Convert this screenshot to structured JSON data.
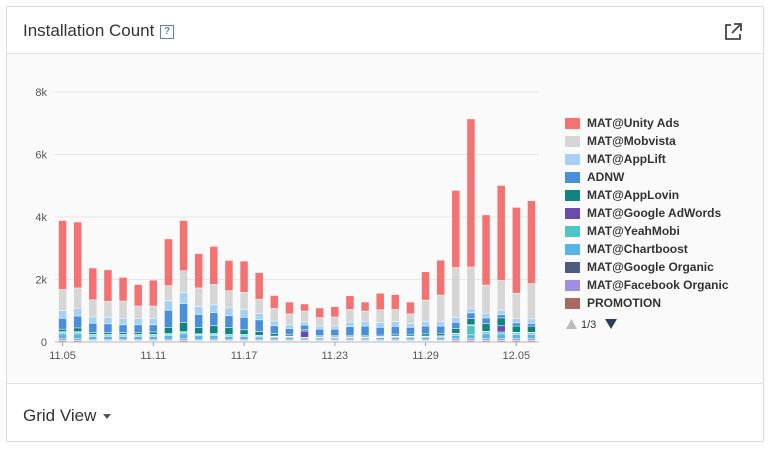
{
  "header": {
    "title": "Installation Count",
    "help_icon": "question-mark-icon",
    "export_icon": "external-link-icon"
  },
  "footer": {
    "view_label": "Grid View",
    "caret_icon": "caret-down-icon"
  },
  "legend": {
    "page_text": "1/3",
    "prev_icon": "triangle-up-icon",
    "next_icon": "triangle-down-icon"
  },
  "chart_data": {
    "type": "bar",
    "stacked": true,
    "y_ticks": [
      "0",
      "2k",
      "4k",
      "6k",
      "8k"
    ],
    "ylim": [
      0,
      8000
    ],
    "x_tick_labels": [
      "11.05",
      "11.11",
      "11.17",
      "11.23",
      "11.29",
      "12.05"
    ],
    "categories": [
      "11.05",
      "11.06",
      "11.07",
      "11.08",
      "11.09",
      "11.10",
      "11.11",
      "11.12",
      "11.13",
      "11.14",
      "11.15",
      "11.16",
      "11.17",
      "11.18",
      "11.19",
      "11.20",
      "11.21",
      "11.22",
      "11.23",
      "11.24",
      "11.25",
      "11.26",
      "11.27",
      "11.28",
      "11.29",
      "11.30",
      "12.01",
      "12.02",
      "12.03",
      "12.04",
      "12.05",
      "12.06"
    ],
    "grid": true,
    "legend_position": "right",
    "series": [
      {
        "name": "PROMOTION",
        "color": "#a86a60",
        "values": [
          30,
          30,
          20,
          20,
          20,
          20,
          20,
          20,
          30,
          20,
          20,
          20,
          20,
          20,
          20,
          20,
          20,
          20,
          20,
          20,
          20,
          20,
          20,
          20,
          20,
          20,
          30,
          30,
          30,
          30,
          30,
          30
        ]
      },
      {
        "name": "MAT@Facebook Organic",
        "color": "#a08ee0",
        "values": [
          30,
          30,
          20,
          20,
          20,
          20,
          20,
          30,
          30,
          20,
          30,
          20,
          20,
          20,
          20,
          20,
          20,
          20,
          20,
          20,
          20,
          20,
          20,
          20,
          20,
          20,
          30,
          30,
          30,
          30,
          30,
          30
        ]
      },
      {
        "name": "MAT@Google Organic",
        "color": "#4d5c80",
        "values": [
          40,
          40,
          30,
          30,
          30,
          30,
          30,
          30,
          40,
          30,
          30,
          30,
          30,
          30,
          30,
          30,
          30,
          30,
          30,
          30,
          30,
          30,
          30,
          30,
          30,
          30,
          40,
          40,
          40,
          40,
          40,
          40
        ]
      },
      {
        "name": "MAT@Chartboost",
        "color": "#56b4e9",
        "values": [
          150,
          150,
          100,
          100,
          100,
          100,
          100,
          120,
          150,
          120,
          120,
          100,
          100,
          80,
          60,
          60,
          50,
          50,
          50,
          50,
          50,
          60,
          60,
          60,
          60,
          70,
          100,
          120,
          150,
          150,
          130,
          130
        ]
      },
      {
        "name": "MAT@YeahMobi",
        "color": "#4cc5c5",
        "values": [
          50,
          50,
          40,
          40,
          40,
          40,
          40,
          40,
          50,
          40,
          40,
          40,
          40,
          30,
          30,
          30,
          20,
          20,
          20,
          20,
          20,
          20,
          30,
          30,
          30,
          30,
          50,
          300,
          60,
          60,
          50,
          50
        ]
      },
      {
        "name": "MAT@Google AdWords",
        "color": "#6a4cb0",
        "values": [
          20,
          20,
          20,
          20,
          20,
          20,
          20,
          20,
          20,
          20,
          20,
          20,
          20,
          20,
          20,
          20,
          200,
          20,
          20,
          20,
          20,
          20,
          20,
          20,
          20,
          20,
          20,
          20,
          20,
          200,
          20,
          20
        ]
      },
      {
        "name": "MAT@AppLovin",
        "color": "#10847e",
        "values": [
          80,
          120,
          60,
          60,
          60,
          70,
          80,
          200,
          300,
          200,
          250,
          220,
          150,
          120,
          80,
          60,
          40,
          40,
          40,
          40,
          40,
          40,
          60,
          60,
          70,
          80,
          150,
          200,
          250,
          250,
          200,
          200
        ]
      },
      {
        "name": "ADNW",
        "color": "#4a8fdc",
        "values": [
          350,
          380,
          300,
          280,
          250,
          240,
          230,
          550,
          600,
          420,
          420,
          380,
          400,
          380,
          250,
          180,
          150,
          200,
          200,
          280,
          300,
          250,
          250,
          220,
          250,
          230,
          200,
          180,
          180,
          100,
          100,
          80
        ]
      },
      {
        "name": "MAT@AppLift",
        "color": "#a7d0f5",
        "values": [
          250,
          250,
          200,
          200,
          200,
          200,
          200,
          300,
          350,
          250,
          250,
          250,
          250,
          200,
          150,
          120,
          100,
          100,
          100,
          150,
          150,
          150,
          150,
          120,
          150,
          150,
          150,
          150,
          150,
          150,
          150,
          150
        ]
      },
      {
        "name": "MAT@Mobvista",
        "color": "#d6d6d6",
        "values": [
          670,
          650,
          550,
          520,
          560,
          400,
          400,
          480,
          700,
          600,
          650,
          550,
          550,
          460,
          400,
          350,
          350,
          270,
          290,
          400,
          330,
          410,
          390,
          310,
          680,
          840,
          1600,
          1320,
          900,
          950,
          800,
          1130
        ]
      },
      {
        "name": "MAT@Unity Ads",
        "color": "#f47272",
        "values": [
          2210,
          2110,
          1020,
          1010,
          760,
          690,
          830,
          1500,
          1610,
          1100,
          1220,
          970,
          1000,
          850,
          420,
          380,
          230,
          310,
          330,
          440,
          290,
          530,
          480,
          380,
          910,
          1120,
          2470,
          4740,
          2250,
          3040,
          2750,
          2650
        ]
      }
    ],
    "legend_order": [
      "MAT@Unity Ads",
      "MAT@Mobvista",
      "MAT@AppLift",
      "ADNW",
      "MAT@AppLovin",
      "MAT@Google AdWords",
      "MAT@YeahMobi",
      "MAT@Chartboost",
      "MAT@Google Organic",
      "MAT@Facebook Organic",
      "PROMOTION"
    ]
  }
}
